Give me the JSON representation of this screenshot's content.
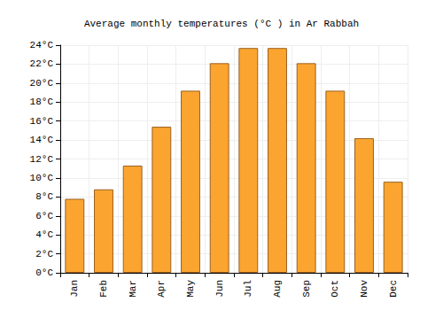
{
  "chart_data": {
    "type": "bar",
    "title": "Average monthly temperatures (°C ) in Ar Rabbah",
    "categories": [
      "Jan",
      "Feb",
      "Mar",
      "Apr",
      "May",
      "Jun",
      "Jul",
      "Aug",
      "Sep",
      "Oct",
      "Nov",
      "Dec"
    ],
    "values": [
      7.8,
      8.8,
      11.3,
      15.4,
      19.2,
      22.1,
      23.7,
      23.7,
      22.1,
      19.2,
      14.2,
      9.6
    ],
    "color": "#fba530",
    "ylim": [
      0,
      24
    ],
    "yticks": [
      {
        "value": 0,
        "label": "0°C"
      },
      {
        "value": 2,
        "label": "2°C"
      },
      {
        "value": 4,
        "label": "4°C"
      },
      {
        "value": 6,
        "label": "6°C"
      },
      {
        "value": 8,
        "label": "8°C"
      },
      {
        "value": 10,
        "label": "10°C"
      },
      {
        "value": 12,
        "label": "12°C"
      },
      {
        "value": 14,
        "label": "14°C"
      },
      {
        "value": 16,
        "label": "16°C"
      },
      {
        "value": 18,
        "label": "18°C"
      },
      {
        "value": 20,
        "label": "20°C"
      },
      {
        "value": 22,
        "label": "22°C"
      },
      {
        "value": 24,
        "label": "24°C"
      }
    ],
    "grid": true
  }
}
